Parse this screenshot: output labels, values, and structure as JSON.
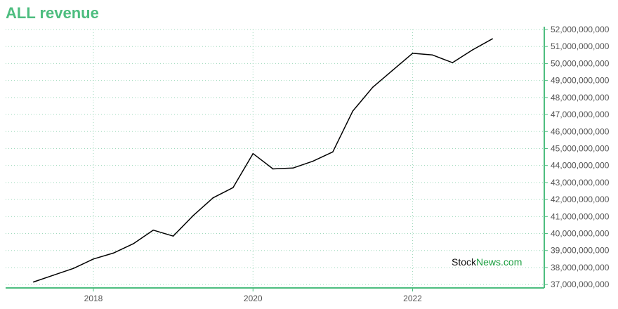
{
  "chart_data": {
    "type": "line",
    "title": "ALL revenue",
    "xlabel": "",
    "ylabel": "",
    "xlim": [
      2016.9,
      2023.65
    ],
    "ylim": [
      36800000000,
      52000000000
    ],
    "x_ticks": [
      {
        "value": 2018,
        "label": "2018"
      },
      {
        "value": 2020,
        "label": "2020"
      },
      {
        "value": 2022,
        "label": "2022"
      }
    ],
    "y_ticks": [
      {
        "value": 37000000000,
        "label": "37,000,000,000"
      },
      {
        "value": 38000000000,
        "label": "38,000,000,000"
      },
      {
        "value": 39000000000,
        "label": "39,000,000,000"
      },
      {
        "value": 40000000000,
        "label": "40,000,000,000"
      },
      {
        "value": 41000000000,
        "label": "41,000,000,000"
      },
      {
        "value": 42000000000,
        "label": "42,000,000,000"
      },
      {
        "value": 43000000000,
        "label": "43,000,000,000"
      },
      {
        "value": 44000000000,
        "label": "44,000,000,000"
      },
      {
        "value": 45000000000,
        "label": "45,000,000,000"
      },
      {
        "value": 46000000000,
        "label": "46,000,000,000"
      },
      {
        "value": 47000000000,
        "label": "47,000,000,000"
      },
      {
        "value": 48000000000,
        "label": "48,000,000,000"
      },
      {
        "value": 49000000000,
        "label": "49,000,000,000"
      },
      {
        "value": 50000000000,
        "label": "50,000,000,000"
      },
      {
        "value": 51000000000,
        "label": "51,000,000,000"
      },
      {
        "value": 52000000000,
        "label": "52,000,000,000"
      }
    ],
    "grid": true,
    "series": [
      {
        "x": [
          2017.25,
          2017.5,
          2017.75,
          2018.0,
          2018.25,
          2018.5,
          2018.75,
          2019.0,
          2019.25,
          2019.5,
          2019.75,
          2020.0,
          2020.25,
          2020.5,
          2020.75,
          2021.0,
          2021.25,
          2021.5,
          2021.75,
          2022.0,
          2022.25,
          2022.5,
          2022.75,
          2023.0
        ],
        "y": [
          37150000000,
          37550000000,
          37950000000,
          38500000000,
          38850000000,
          39400000000,
          40200000000,
          39850000000,
          41050000000,
          42100000000,
          42700000000,
          44700000000,
          43800000000,
          43850000000,
          44250000000,
          44800000000,
          47200000000,
          48600000000,
          49600000000,
          50600000000,
          50500000000,
          50050000000,
          50800000000,
          51450000000
        ]
      }
    ]
  },
  "colors": {
    "title": "#4dbd7f",
    "axis": "#4dbd7f",
    "grid": "#9fd9bc",
    "line": "#000000",
    "tick_text": "#555555"
  },
  "watermark": {
    "part1": "Stock",
    "part2": "News.com"
  }
}
